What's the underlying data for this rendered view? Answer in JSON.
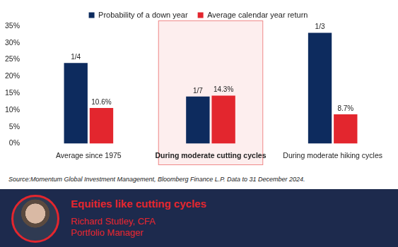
{
  "chart_data": {
    "type": "bar",
    "categories": [
      "Average since 1975",
      "During moderate cutting cycles",
      "During moderate hiking cycles"
    ],
    "series": [
      {
        "name": "Probability of a down year",
        "color": "#0d2b5e",
        "values": [
          24,
          14,
          33
        ],
        "value_labels": [
          "1/4",
          "1/7",
          "1/3"
        ]
      },
      {
        "name": "Average calendar year return",
        "color": "#e3262e",
        "values": [
          10.6,
          14.3,
          8.7
        ],
        "value_labels": [
          "10.6%",
          "14.3%",
          "8.7%"
        ]
      }
    ],
    "ylim": [
      0,
      35
    ],
    "yticks": [
      {
        "value": 0,
        "label": "0%"
      },
      {
        "value": 5,
        "label": "5%"
      },
      {
        "value": 10,
        "label": "10%"
      },
      {
        "value": 15,
        "label": "15%"
      },
      {
        "value": 20,
        "label": "20%"
      },
      {
        "value": 25,
        "label": "25%"
      },
      {
        "value": 30,
        "label": "30%"
      },
      {
        "value": 35,
        "label": "35%"
      }
    ],
    "grid": false,
    "legend": "top",
    "data_labels": true,
    "source": "Source:Momentum Global Investment Management, Bloomberg Finance L.P. Data to 31 December 2024.",
    "footer": {
      "headline": "Equities like cutting cycles",
      "name": "Richard Stutley, CFA",
      "role": "Portfolio Manager"
    }
  }
}
